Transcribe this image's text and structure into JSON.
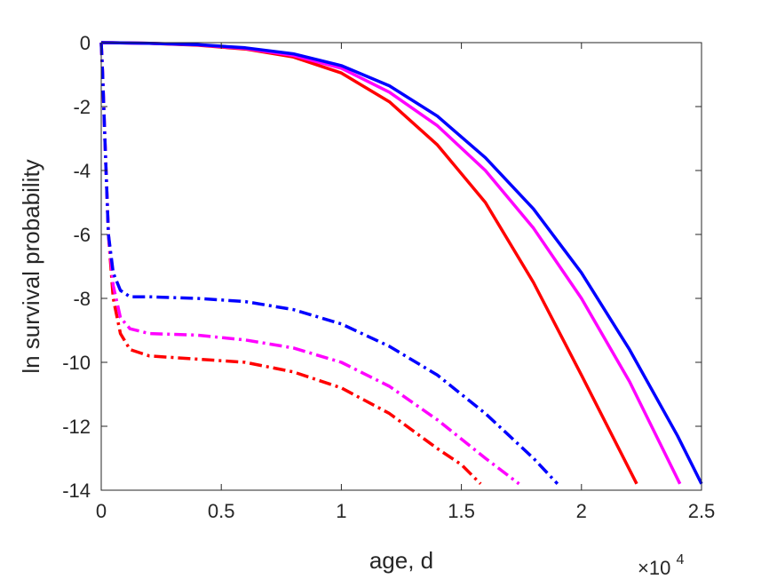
{
  "chart_data": {
    "type": "line",
    "title": "",
    "xlabel": "age, d",
    "ylabel": "ln survival probability",
    "x_exponent_label": {
      "base": "×10",
      "exponent": "4"
    },
    "xlim": [
      0,
      25000
    ],
    "ylim": [
      -14,
      0
    ],
    "xticks": [
      {
        "value": 0,
        "label": "0"
      },
      {
        "value": 5000,
        "label": "0.5"
      },
      {
        "value": 10000,
        "label": "1"
      },
      {
        "value": 15000,
        "label": "1.5"
      },
      {
        "value": 20000,
        "label": "2"
      },
      {
        "value": 25000,
        "label": "2.5"
      }
    ],
    "yticks": [
      {
        "value": 0,
        "label": "0"
      },
      {
        "value": -2,
        "label": "-2"
      },
      {
        "value": -4,
        "label": "-4"
      },
      {
        "value": -6,
        "label": "-6"
      },
      {
        "value": -8,
        "label": "-8"
      },
      {
        "value": -10,
        "label": "-10"
      },
      {
        "value": -12,
        "label": "-12"
      },
      {
        "value": -14,
        "label": "-14"
      }
    ],
    "grid": false,
    "legend": "none",
    "series": [
      {
        "color": "#ff0000",
        "style": "solid",
        "x": [
          0,
          2000,
          4000,
          6000,
          8000,
          10000,
          12000,
          14000,
          16000,
          18000,
          20000,
          22300
        ],
        "y": [
          0,
          -0.02,
          -0.08,
          -0.2,
          -0.45,
          -0.95,
          -1.85,
          -3.2,
          -5.0,
          -7.5,
          -10.4,
          -13.8
        ]
      },
      {
        "color": "#ff00ff",
        "style": "solid",
        "x": [
          0,
          2000,
          4000,
          6000,
          8000,
          10000,
          12000,
          14000,
          16000,
          18000,
          20000,
          22000,
          24100
        ],
        "y": [
          0,
          -0.02,
          -0.07,
          -0.18,
          -0.4,
          -0.8,
          -1.55,
          -2.6,
          -4.0,
          -5.8,
          -8.0,
          -10.6,
          -13.8
        ]
      },
      {
        "color": "#0000ff",
        "style": "solid",
        "x": [
          0,
          2000,
          4000,
          6000,
          8000,
          10000,
          12000,
          14000,
          16000,
          18000,
          20000,
          22000,
          24000,
          25000
        ],
        "y": [
          0,
          -0.02,
          -0.06,
          -0.16,
          -0.35,
          -0.72,
          -1.35,
          -2.3,
          -3.6,
          -5.2,
          -7.2,
          -9.6,
          -12.3,
          -13.8
        ]
      },
      {
        "color": "#ff0000",
        "style": "dashdot",
        "x": [
          0,
          60,
          150,
          300,
          500,
          800,
          1200,
          2000,
          4000,
          6000,
          8000,
          10000,
          12000,
          14000,
          15000,
          15800
        ],
        "y": [
          0,
          -1.0,
          -3.0,
          -6.0,
          -8.0,
          -9.1,
          -9.6,
          -9.8,
          -9.9,
          -10.0,
          -10.3,
          -10.8,
          -11.6,
          -12.7,
          -13.2,
          -13.8
        ]
      },
      {
        "color": "#ff00ff",
        "style": "dashdot",
        "x": [
          0,
          60,
          150,
          300,
          500,
          800,
          1200,
          2000,
          4000,
          6000,
          8000,
          10000,
          12000,
          14000,
          16000,
          17400
        ],
        "y": [
          0,
          -1.0,
          -3.0,
          -6.0,
          -7.6,
          -8.6,
          -8.95,
          -9.1,
          -9.15,
          -9.3,
          -9.55,
          -10.0,
          -10.75,
          -11.8,
          -13.0,
          -13.8
        ]
      },
      {
        "color": "#0000ff",
        "style": "dashdot",
        "x": [
          0,
          60,
          150,
          300,
          500,
          800,
          1200,
          2000,
          4000,
          6000,
          8000,
          10000,
          12000,
          14000,
          16000,
          18000,
          19000
        ],
        "y": [
          0,
          -1.0,
          -3.0,
          -6.0,
          -7.2,
          -7.75,
          -7.95,
          -7.95,
          -8.0,
          -8.1,
          -8.35,
          -8.8,
          -9.5,
          -10.4,
          -11.6,
          -13.0,
          -13.8
        ]
      }
    ]
  }
}
